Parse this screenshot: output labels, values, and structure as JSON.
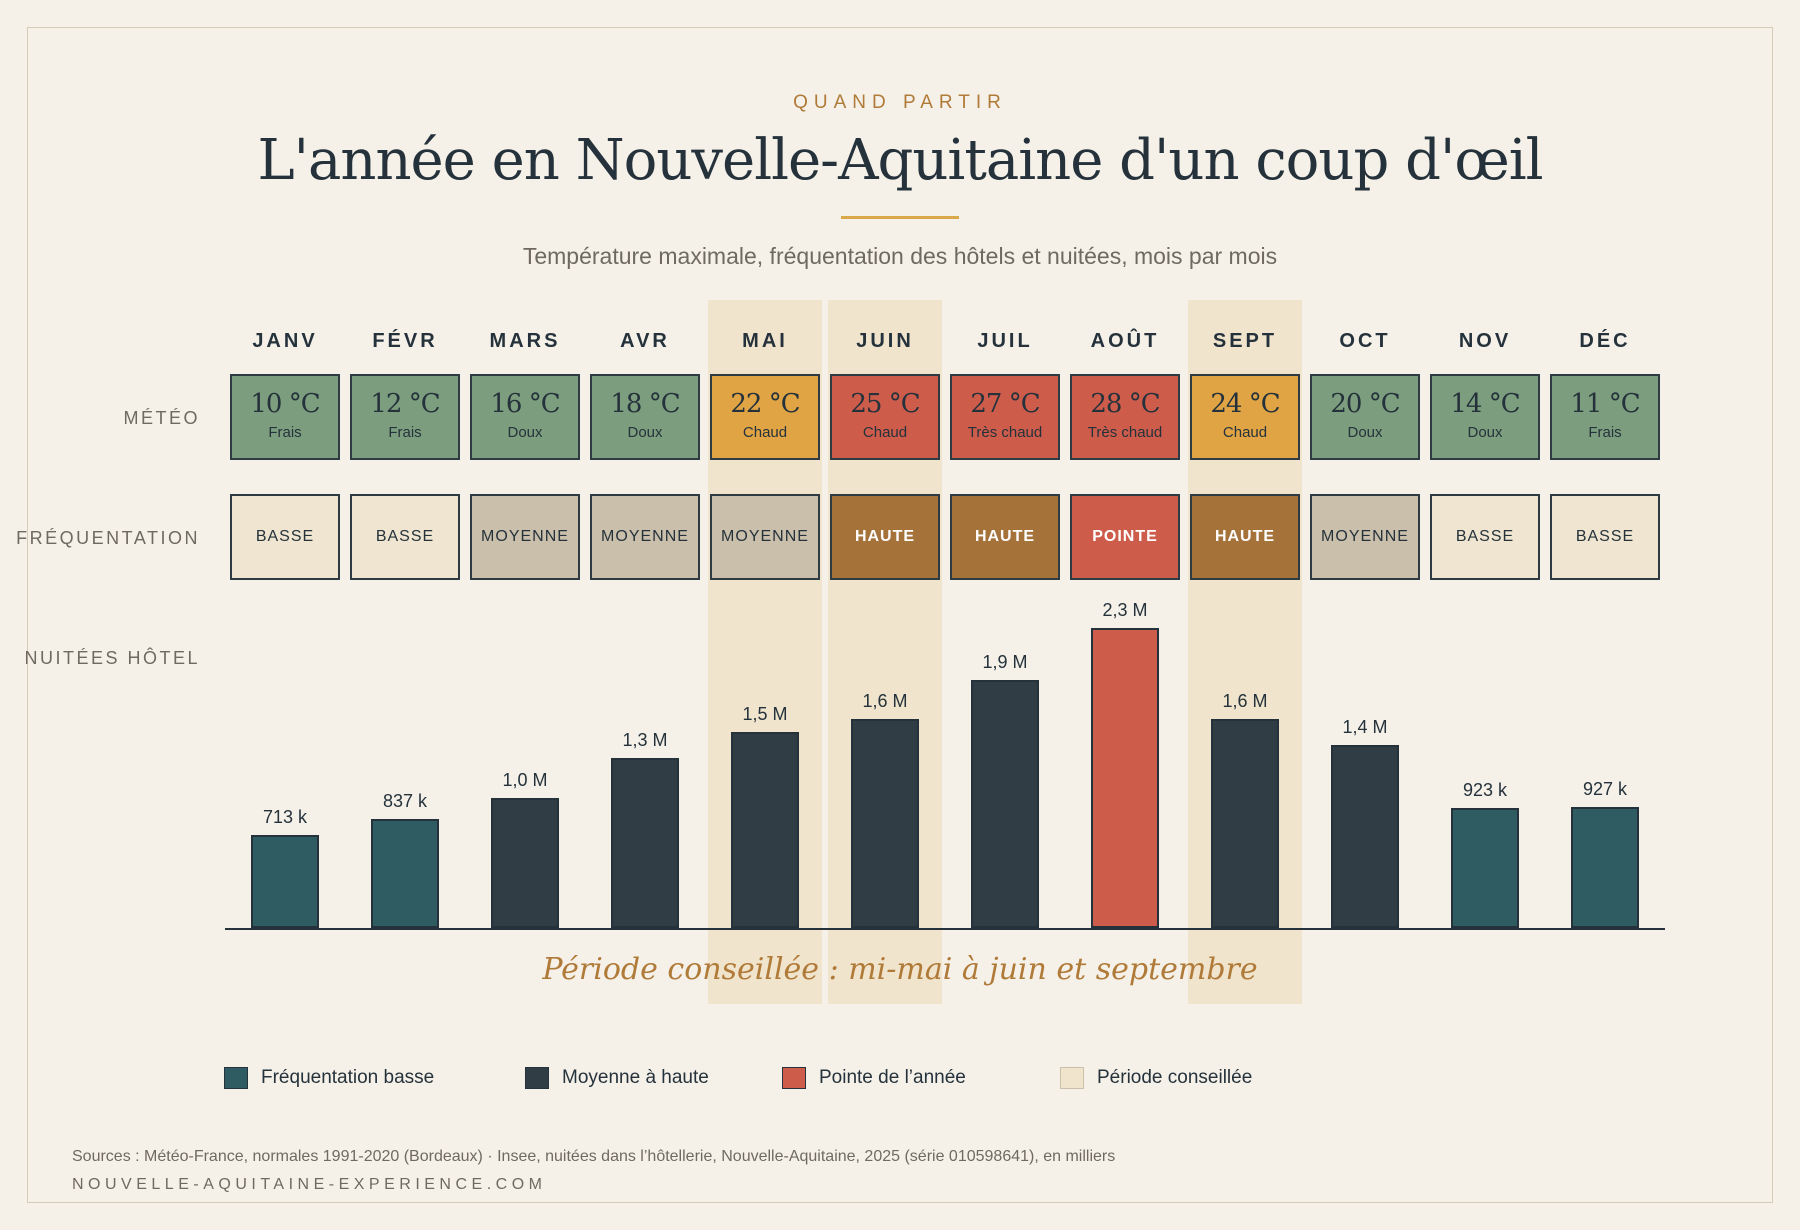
{
  "header": {
    "eyebrow": "QUAND PARTIR",
    "title": "L'année en Nouvelle-Aquitaine d'un coup d'œil",
    "subtitle": "Température maximale, fréquentation des hôtels et nuitées, mois par mois"
  },
  "row_labels": {
    "meteo": "MÉTÉO",
    "frequentation": "FRÉQUENTATION",
    "nuitees": "NUITÉES HÔTEL"
  },
  "colors": {
    "temp_frais": "#7d9e7e",
    "temp_doux": "#7d9e7e",
    "temp_chaud": "#e0a445",
    "temp_tres_chaud": "#cd5c4b",
    "freq_basse": "#efe5d0",
    "freq_moyenne": "#c9bfab",
    "freq_haute": "#a5723a",
    "freq_pointe": "#cd5c4b",
    "bar_basse": "#2f5b62",
    "bar_moyenne_haute": "#313d45",
    "bar_pointe": "#cd5c4b",
    "periode_conseillee": "#f0e4cd"
  },
  "chart_data": {
    "type": "bar",
    "categories": [
      "JANV",
      "FÉVR",
      "MARS",
      "AVR",
      "MAI",
      "JUIN",
      "JUIL",
      "AOÛT",
      "SEPT",
      "OCT",
      "NOV",
      "DÉC"
    ],
    "ylim": [
      0,
      2300
    ],
    "recommended_months": [
      "MAI",
      "JUIN",
      "SEPT"
    ],
    "temperatures": [
      {
        "value": "10 °C",
        "desc": "Frais",
        "level": "frais"
      },
      {
        "value": "12 °C",
        "desc": "Frais",
        "level": "frais"
      },
      {
        "value": "16 °C",
        "desc": "Doux",
        "level": "doux"
      },
      {
        "value": "18 °C",
        "desc": "Doux",
        "level": "doux"
      },
      {
        "value": "22 °C",
        "desc": "Chaud",
        "level": "chaud"
      },
      {
        "value": "25 °C",
        "desc": "Chaud",
        "level": "tres_chaud"
      },
      {
        "value": "27 °C",
        "desc": "Très chaud",
        "level": "tres_chaud"
      },
      {
        "value": "28 °C",
        "desc": "Très chaud",
        "level": "tres_chaud"
      },
      {
        "value": "24 °C",
        "desc": "Chaud",
        "level": "chaud"
      },
      {
        "value": "20 °C",
        "desc": "Doux",
        "level": "doux"
      },
      {
        "value": "14 °C",
        "desc": "Doux",
        "level": "doux"
      },
      {
        "value": "11 °C",
        "desc": "Frais",
        "level": "frais"
      }
    ],
    "frequentation": [
      {
        "label": "BASSE",
        "level": "basse"
      },
      {
        "label": "BASSE",
        "level": "basse"
      },
      {
        "label": "MOYENNE",
        "level": "moyenne"
      },
      {
        "label": "MOYENNE",
        "level": "moyenne"
      },
      {
        "label": "MOYENNE",
        "level": "moyenne"
      },
      {
        "label": "HAUTE",
        "level": "haute"
      },
      {
        "label": "HAUTE",
        "level": "haute"
      },
      {
        "label": "POINTE",
        "level": "pointe"
      },
      {
        "label": "HAUTE",
        "level": "haute"
      },
      {
        "label": "MOYENNE",
        "level": "moyenne"
      },
      {
        "label": "BASSE",
        "level": "basse"
      },
      {
        "label": "BASSE",
        "level": "basse"
      }
    ],
    "nuitees": {
      "values": [
        713,
        837,
        1000,
        1300,
        1500,
        1600,
        1900,
        2300,
        1600,
        1400,
        923,
        927
      ],
      "labels": [
        "713 k",
        "837 k",
        "1,0 M",
        "1,3 M",
        "1,5 M",
        "1,6 M",
        "1,9 M",
        "2,3 M",
        "1,6 M",
        "1,4 M",
        "923 k",
        "927 k"
      ],
      "category": [
        "basse",
        "basse",
        "moyenne_haute",
        "moyenne_haute",
        "moyenne_haute",
        "moyenne_haute",
        "moyenne_haute",
        "pointe",
        "moyenne_haute",
        "moyenne_haute",
        "basse",
        "basse"
      ]
    }
  },
  "period_note": "Période conseillée : mi-mai à juin et septembre",
  "legend": [
    {
      "label": "Fréquentation basse",
      "color": "#2f5b62"
    },
    {
      "label": "Moyenne à haute",
      "color": "#313d45"
    },
    {
      "label": "Pointe de l’année",
      "color": "#cd5c4b"
    },
    {
      "label": "Période conseillée",
      "color": "#f0e4cd"
    }
  ],
  "footer": {
    "sources": "Sources : Météo-France, normales 1991-2020 (Bordeaux) · Insee, nuitées dans l’hôtellerie, Nouvelle-Aquitaine, 2025 (série 010598641), en milliers",
    "site": "NOUVELLE-AQUITAINE-EXPERIENCE.COM"
  }
}
